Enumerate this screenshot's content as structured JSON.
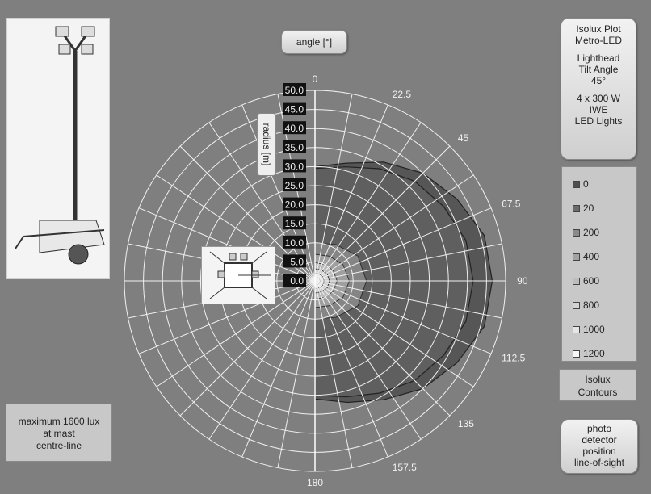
{
  "angle_button": "angle  [°]",
  "radius_button": "radius  [m]",
  "info_panel": [
    "Isolux Plot",
    "Metro-LED",
    "",
    "Lighthead",
    "Tilt Angle",
    "45°",
    "",
    "4 x 300 W",
    "IWE",
    "LED Lights"
  ],
  "legend_title": [
    "Isolux",
    "Contours"
  ],
  "photo_button": [
    "photo",
    "detector",
    "position",
    "line-of-sight"
  ],
  "max_lux_note": [
    "maximum 1600 lux",
    "at mast",
    "centre-line"
  ],
  "colors": {
    "background": "#7f7f7f",
    "grid": "#f2f2f2",
    "contour_fill": "#555555",
    "button": "#e6e6e6"
  },
  "chart_data": {
    "type": "polar-contour",
    "angle_unit": "°",
    "angle_labels": [
      "0",
      "22.5",
      "45",
      "67.5",
      "90",
      "112.5",
      "135",
      "157.5",
      "180"
    ],
    "radius_unit": "m",
    "radius_ticks": [
      "0.0",
      "5.0",
      "10.0",
      "15.0",
      "20.0",
      "25.0",
      "30.0",
      "35.0",
      "40.0",
      "45.0",
      "50.0"
    ],
    "rlim": [
      0,
      50
    ],
    "grid": true,
    "legend": {
      "placement": "right",
      "entries": [
        {
          "label": "0",
          "color": "#4f4f4f"
        },
        {
          "label": "20",
          "color": "#6a6a6a"
        },
        {
          "label": "200",
          "color": "#8a8a8a"
        },
        {
          "label": "400",
          "color": "#a2a2a2"
        },
        {
          "label": "600",
          "color": "#bdbdbd"
        },
        {
          "label": "800",
          "color": "#d3d3d3"
        },
        {
          "label": "1000",
          "color": "#e6e6e6"
        },
        {
          "label": "1200",
          "color": "#f6f6f6"
        }
      ]
    },
    "contours": [
      {
        "level": "0",
        "points": [
          [
            0,
            30
          ],
          [
            15,
            32
          ],
          [
            30,
            36
          ],
          [
            45,
            40
          ],
          [
            60,
            43
          ],
          [
            75,
            46
          ],
          [
            90,
            46.5
          ],
          [
            105,
            46
          ],
          [
            120,
            43
          ],
          [
            135,
            40
          ],
          [
            150,
            36
          ],
          [
            165,
            33
          ],
          [
            180,
            31
          ]
        ]
      },
      {
        "level": "20",
        "points": [
          [
            0,
            29.5
          ],
          [
            15,
            31
          ],
          [
            30,
            34
          ],
          [
            45,
            37
          ],
          [
            60,
            39
          ],
          [
            75,
            41
          ],
          [
            90,
            41.5
          ],
          [
            105,
            41
          ],
          [
            120,
            39
          ],
          [
            135,
            37
          ],
          [
            150,
            34
          ],
          [
            165,
            31.5
          ],
          [
            180,
            30
          ]
        ]
      },
      {
        "level": "200",
        "points": [
          [
            0,
            10
          ],
          [
            30,
            11
          ],
          [
            60,
            13
          ],
          [
            90,
            13.5
          ],
          [
            120,
            13
          ],
          [
            150,
            11
          ],
          [
            180,
            10
          ]
        ]
      },
      {
        "level": "400",
        "points": [
          [
            0,
            7
          ],
          [
            30,
            7.5
          ],
          [
            60,
            8.5
          ],
          [
            90,
            9
          ],
          [
            120,
            8.5
          ],
          [
            150,
            7.5
          ],
          [
            180,
            7
          ]
        ]
      },
      {
        "level": "600",
        "points": [
          [
            0,
            4.8
          ],
          [
            30,
            5
          ],
          [
            60,
            5.5
          ],
          [
            90,
            5.8
          ],
          [
            120,
            5.5
          ],
          [
            150,
            5
          ],
          [
            180,
            4.8
          ]
        ]
      },
      {
        "level": "800",
        "points": [
          [
            0,
            3.2
          ],
          [
            30,
            3.3
          ],
          [
            60,
            3.7
          ],
          [
            90,
            3.8
          ],
          [
            120,
            3.7
          ],
          [
            150,
            3.3
          ],
          [
            180,
            3.2
          ]
        ]
      },
      {
        "level": "1000",
        "points": [
          [
            0,
            2
          ],
          [
            30,
            2.1
          ],
          [
            60,
            2.3
          ],
          [
            90,
            2.4
          ],
          [
            120,
            2.3
          ],
          [
            150,
            2.1
          ],
          [
            180,
            2
          ]
        ]
      },
      {
        "level": "1200",
        "points": [
          [
            0,
            1
          ],
          [
            30,
            1.1
          ],
          [
            60,
            1.3
          ],
          [
            90,
            1.4
          ],
          [
            120,
            1.3
          ],
          [
            150,
            1.1
          ],
          [
            180,
            1
          ]
        ]
      }
    ]
  }
}
